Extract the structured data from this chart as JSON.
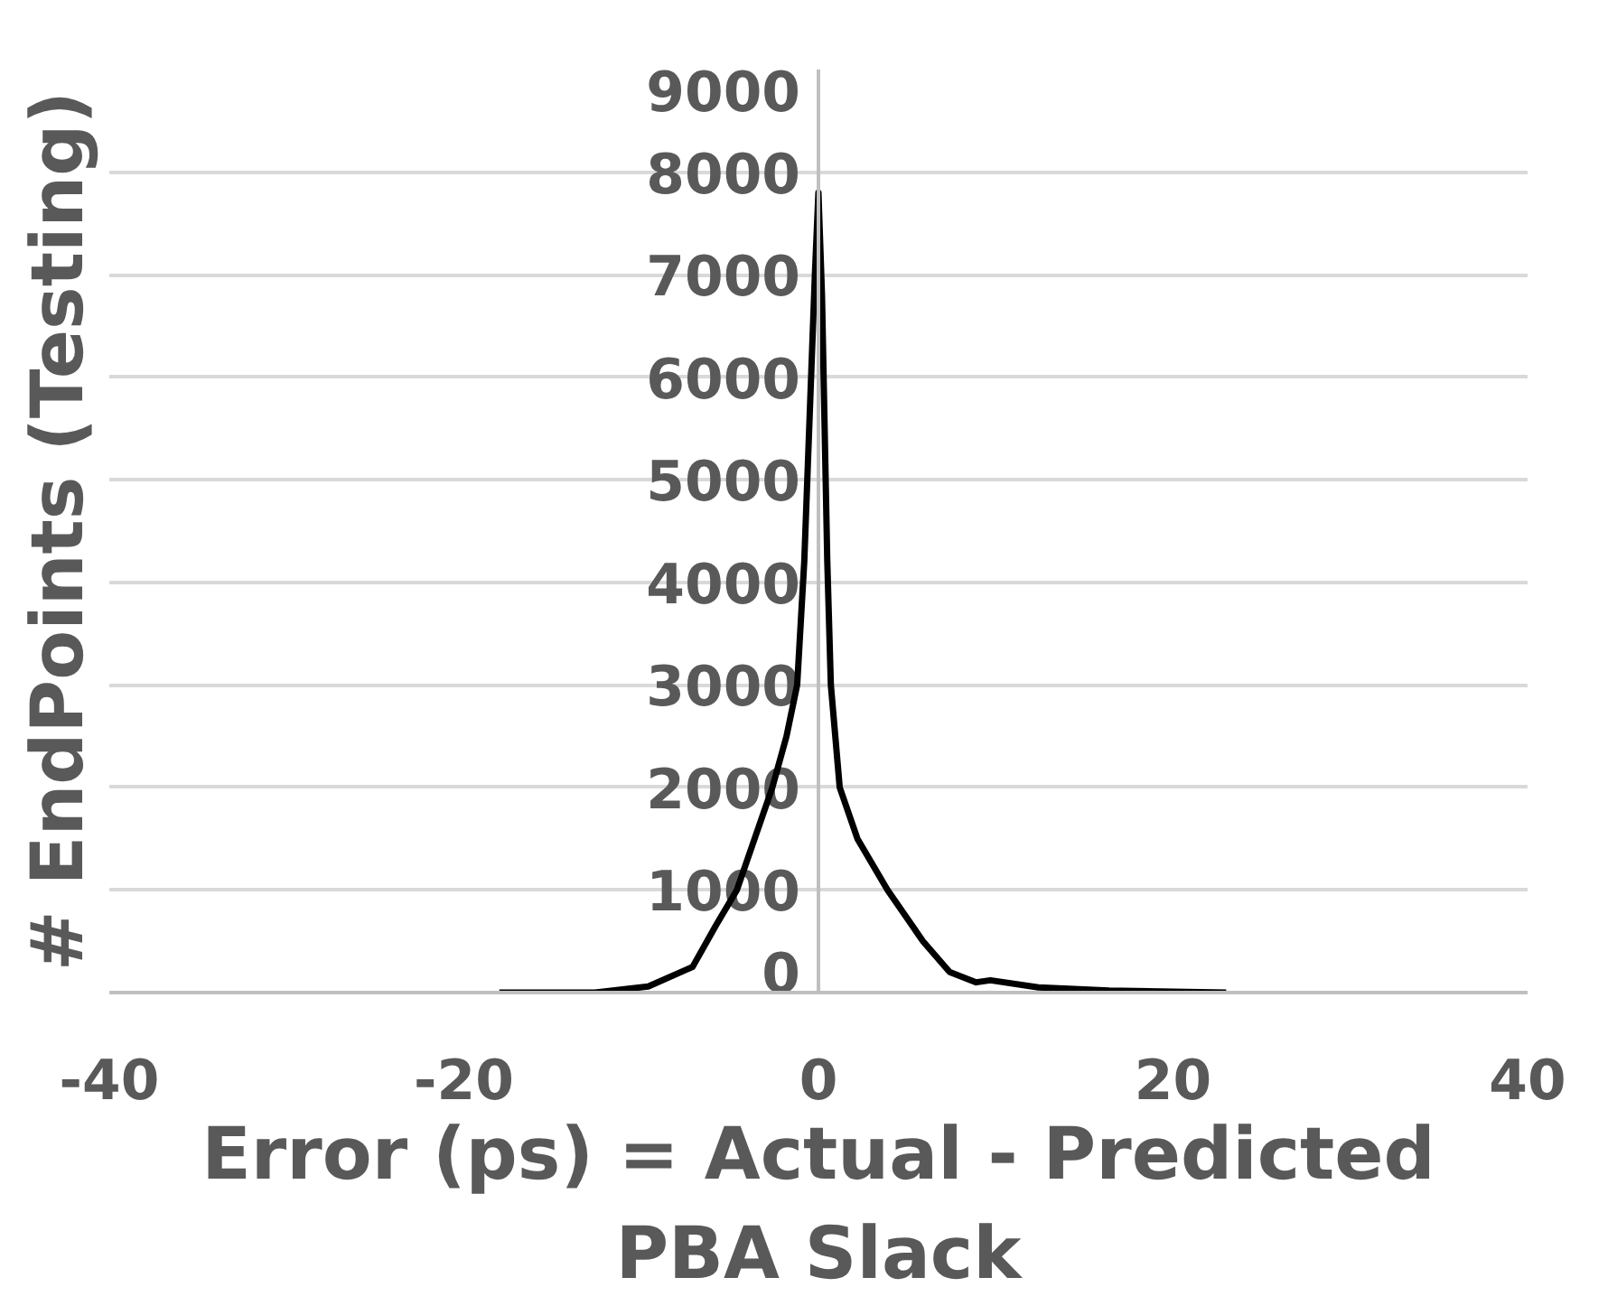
{
  "chart_data": {
    "type": "line",
    "xlabel": "Error (ps) = Actual - Predicted\nPBA Slack",
    "ylabel": "# EndPoints (Testing)",
    "xlim": [
      -40,
      40
    ],
    "xticks": [
      -40,
      -20,
      0,
      20,
      40
    ],
    "ylim": [
      0,
      9000
    ],
    "yticks": [
      0,
      1000,
      2000,
      3000,
      4000,
      5000,
      6000,
      7000,
      8000,
      9000
    ],
    "grid": "y",
    "marker": "none",
    "line_style": "solid",
    "series": [
      {
        "color": "#000000",
        "x": [
          -18,
          -12.6,
          -9.6,
          -7.1,
          -5.8,
          -4.6,
          -3.6,
          -2.6,
          -1.8,
          -1.2,
          -0.8,
          -0.5,
          -0.2,
          0,
          0.2,
          0.5,
          0.7,
          1.2,
          2.2,
          3.9,
          5.9,
          7.4,
          8.9,
          9.7,
          12.4,
          16.4,
          23
        ],
        "values": [
          0,
          0,
          60,
          250,
          650,
          1000,
          1500,
          2000,
          2500,
          3000,
          4200,
          5600,
          7000,
          7800,
          6800,
          4200,
          3000,
          2000,
          1500,
          1000,
          500,
          200,
          100,
          120,
          50,
          20,
          0
        ]
      }
    ]
  }
}
